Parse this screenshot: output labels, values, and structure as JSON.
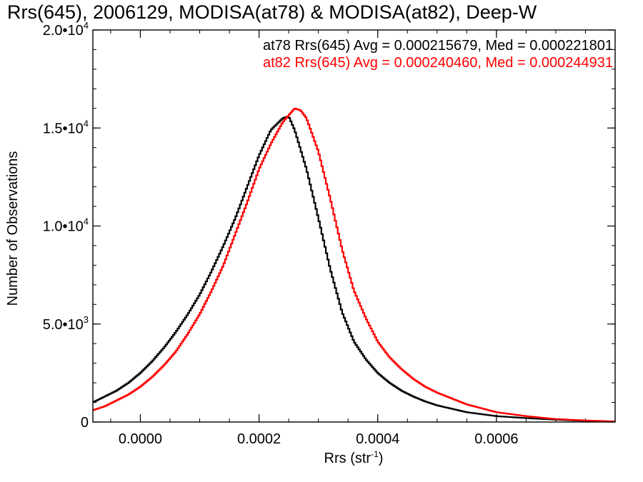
{
  "chart_data": {
    "type": "line",
    "title": "Rrs(645), 2006129, MODISA(at78) & MODISA(at82), Deep-W",
    "xlabel": "Rrs (str",
    "xlabel_sup": "-1",
    "xlabel_end": ")",
    "ylabel": "Number of Observations",
    "xlim": [
      -8e-05,
      0.0008
    ],
    "ylim": [
      0,
      20000
    ],
    "x_ticks": [
      {
        "value": 0.0,
        "label": "0.0000"
      },
      {
        "value": 0.0002,
        "label": "0.0002"
      },
      {
        "value": 0.0004,
        "label": "0.0004"
      },
      {
        "value": 0.0006,
        "label": "0.0006"
      }
    ],
    "x_minor_step": 5e-05,
    "y_ticks": [
      {
        "value": 0,
        "base": "0",
        "exp": ""
      },
      {
        "value": 5000,
        "base": "5.0•10",
        "exp": "3"
      },
      {
        "value": 10000,
        "base": "1.0•10",
        "exp": "4"
      },
      {
        "value": 15000,
        "base": "1.5•10",
        "exp": "4"
      },
      {
        "value": 20000,
        "base": "2.0•10",
        "exp": "4"
      }
    ],
    "y_minor_step": 1000,
    "grid": false,
    "legend_position": "top-right",
    "series": [
      {
        "name": "at78 Rrs(645) Avg = 0.000215679, Med = 0.000221801",
        "color": "#000000",
        "x": [
          -8e-05,
          -6e-05,
          -4e-05,
          -2e-05,
          0.0,
          2e-05,
          4e-05,
          6e-05,
          8e-05,
          0.0001,
          0.00012,
          0.00014,
          0.00016,
          0.00018,
          0.0002,
          0.00022,
          0.00024,
          0.00025,
          0.00026,
          0.00028,
          0.0003,
          0.00032,
          0.00034,
          0.00036,
          0.00038,
          0.0004,
          0.00042,
          0.00044,
          0.00046,
          0.00048,
          0.0005,
          0.00055,
          0.0006,
          0.00065,
          0.0007,
          0.00075,
          0.0008
        ],
        "y": [
          1000,
          1300,
          1600,
          2000,
          2500,
          3100,
          3800,
          4600,
          5500,
          6500,
          7700,
          9000,
          10400,
          12000,
          13600,
          14900,
          15500,
          15600,
          14900,
          12900,
          10400,
          7800,
          5600,
          4100,
          3200,
          2500,
          2000,
          1600,
          1300,
          1050,
          850,
          500,
          300,
          200,
          120,
          60,
          20
        ]
      },
      {
        "name": "at82 Rrs(645) Avg = 0.000240460, Med = 0.000244931",
        "color": "#ff0000",
        "x": [
          -8e-05,
          -6e-05,
          -4e-05,
          -2e-05,
          0.0,
          2e-05,
          4e-05,
          6e-05,
          8e-05,
          0.0001,
          0.00012,
          0.00014,
          0.00016,
          0.00018,
          0.0002,
          0.00022,
          0.00024,
          0.00026,
          0.00027,
          0.00028,
          0.0003,
          0.00032,
          0.00034,
          0.00036,
          0.00038,
          0.0004,
          0.00042,
          0.00044,
          0.00046,
          0.00048,
          0.0005,
          0.00055,
          0.0006,
          0.00065,
          0.0007,
          0.00075,
          0.0008
        ],
        "y": [
          600,
          800,
          1100,
          1400,
          1800,
          2300,
          2900,
          3600,
          4500,
          5500,
          6700,
          8000,
          9600,
          11200,
          12900,
          14200,
          15300,
          16000,
          15900,
          15500,
          13800,
          11400,
          8800,
          6700,
          5300,
          4100,
          3300,
          2700,
          2200,
          1800,
          1500,
          900,
          500,
          300,
          150,
          80,
          30
        ]
      }
    ]
  }
}
